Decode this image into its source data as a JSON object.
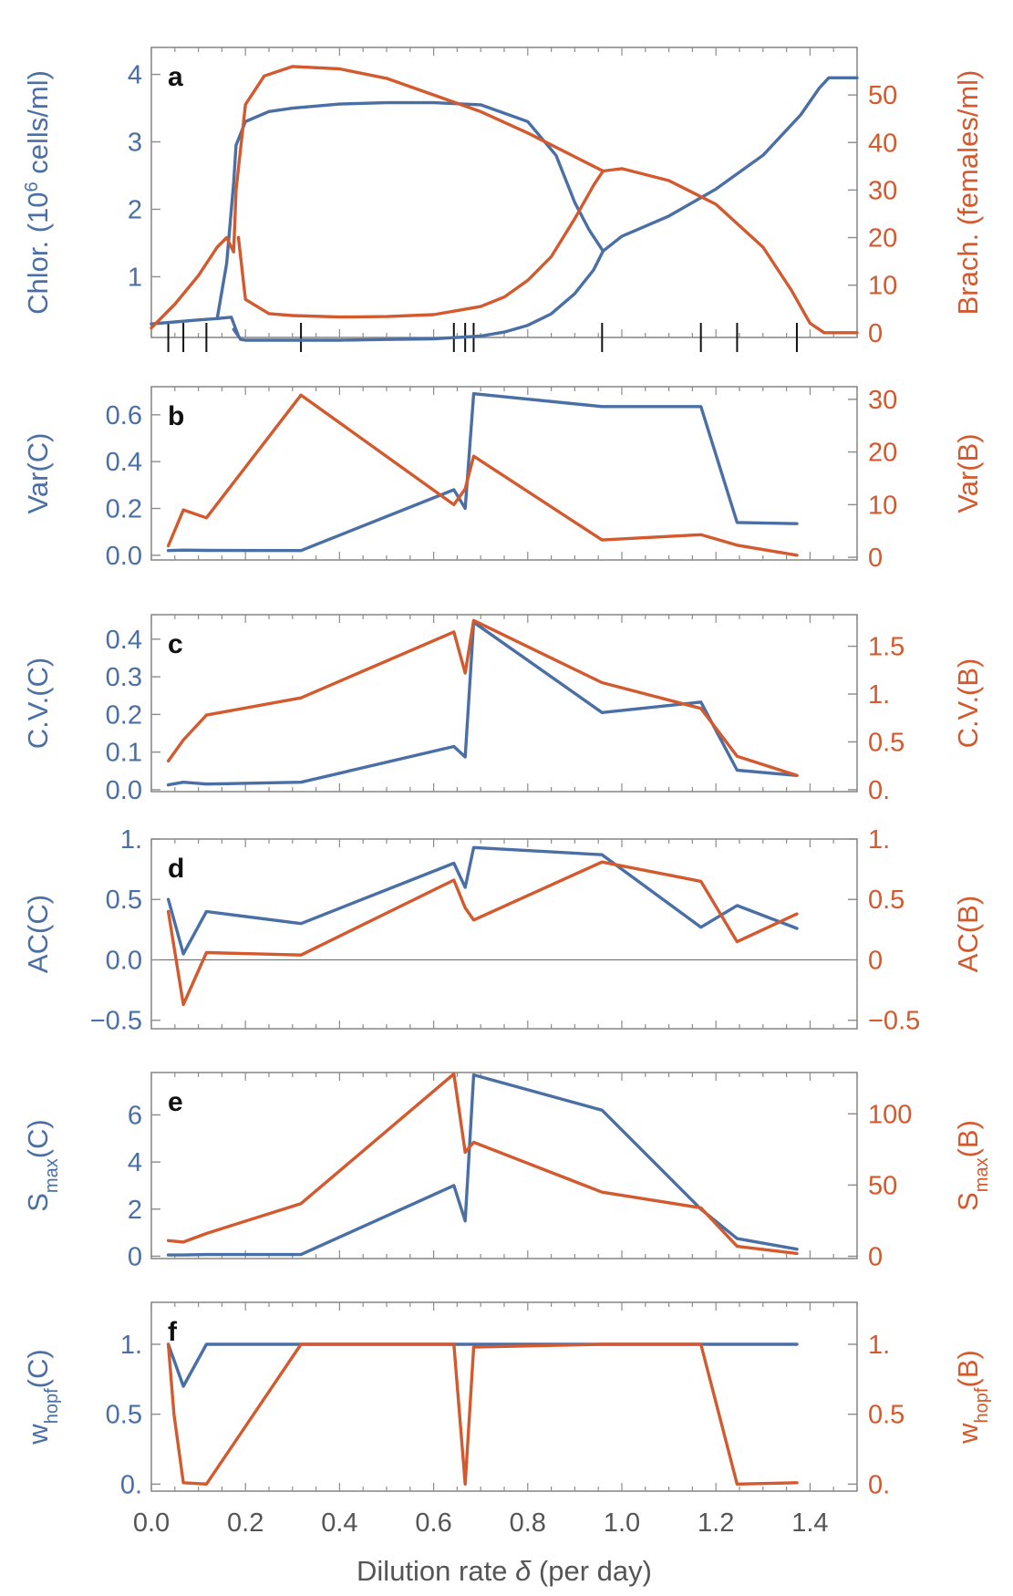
{
  "colors": {
    "blue": "#4A6FA5",
    "orange": "#D25A2E",
    "frame": "#8C8C8C",
    "text": "#555555",
    "zero": "#666666"
  },
  "x_axis": {
    "label_prefix": "Dilution rate ",
    "label_symbol": "δ",
    "label_suffix": " (per day)",
    "ticks": [
      "0.0",
      "0.2",
      "0.4",
      "0.6",
      "0.8",
      "1.0",
      "1.2",
      "1.4"
    ],
    "tick_values": [
      0,
      0.2,
      0.4,
      0.6,
      0.8,
      1.0,
      1.2,
      1.4
    ],
    "range": [
      0,
      1.5
    ]
  },
  "chart_data": [
    {
      "type": "line",
      "panel_letter": "a",
      "left_ylabel": "Chlor. (10",
      "left_ylabel_sup": "6",
      "left_ylabel_tail": " cells/ml)",
      "right_ylabel": "Brach. (females/ml)",
      "left_ylim": [
        0.1,
        4.4
      ],
      "right_ylim": [
        -1,
        60
      ],
      "left_ticks": [
        "1",
        "2",
        "3",
        "4"
      ],
      "left_tick_values": [
        1,
        2,
        3,
        4
      ],
      "right_ticks": [
        "0",
        "10",
        "20",
        "30",
        "40",
        "50"
      ],
      "right_tick_values": [
        0,
        10,
        20,
        30,
        40,
        50
      ],
      "sample_rates": [
        0.036,
        0.068,
        0.117,
        0.318,
        0.643,
        0.667,
        0.685,
        0.958,
        1.168,
        1.245,
        1.372
      ],
      "series": [
        {
          "axis": "left",
          "color": "blue",
          "x": [
            0.0,
            0.05,
            0.1,
            0.14,
            0.17,
            0.185
          ],
          "y": [
            0.3,
            0.33,
            0.36,
            0.38,
            0.4,
            0.12
          ]
        },
        {
          "axis": "left",
          "color": "blue",
          "x": [
            0.14,
            0.16,
            0.175,
            0.18,
            0.2,
            0.25,
            0.3,
            0.4,
            0.5,
            0.6,
            0.7,
            0.8,
            0.86,
            0.9,
            0.93,
            0.96
          ],
          "y": [
            0.38,
            1.2,
            2.4,
            2.95,
            3.3,
            3.45,
            3.5,
            3.56,
            3.58,
            3.58,
            3.55,
            3.3,
            2.8,
            2.1,
            1.7,
            1.38
          ]
        },
        {
          "axis": "left",
          "color": "blue",
          "x": [
            0.175,
            0.19,
            0.2,
            0.3,
            0.4,
            0.5,
            0.6,
            0.7,
            0.75,
            0.8,
            0.85,
            0.9,
            0.94,
            0.96
          ],
          "y": [
            0.22,
            0.07,
            0.06,
            0.06,
            0.06,
            0.07,
            0.08,
            0.12,
            0.18,
            0.28,
            0.45,
            0.75,
            1.1,
            1.38
          ]
        },
        {
          "axis": "left",
          "color": "blue",
          "x": [
            0.96,
            1.0,
            1.1,
            1.2,
            1.3,
            1.38,
            1.42,
            1.44,
            1.5
          ],
          "y": [
            1.38,
            1.6,
            1.9,
            2.3,
            2.8,
            3.4,
            3.8,
            3.95,
            3.95
          ]
        },
        {
          "axis": "right",
          "color": "orange",
          "x": [
            0.0,
            0.05,
            0.1,
            0.14,
            0.16,
            0.175,
            0.18,
            0.2,
            0.24,
            0.3,
            0.4,
            0.5,
            0.6,
            0.7,
            0.8,
            0.88,
            0.94,
            0.96
          ],
          "y": [
            1,
            6,
            12,
            18,
            20,
            17,
            30,
            48,
            54,
            56,
            55.5,
            53.5,
            50,
            46.5,
            42,
            38,
            35,
            34
          ]
        },
        {
          "axis": "right",
          "color": "orange",
          "x": [
            0.185,
            0.2,
            0.25,
            0.3,
            0.4,
            0.5,
            0.6,
            0.7,
            0.75,
            0.8,
            0.85,
            0.9,
            0.94,
            0.96
          ],
          "y": [
            20,
            7,
            4,
            3.6,
            3.3,
            3.4,
            3.8,
            5.5,
            7.5,
            11,
            16,
            24,
            31,
            34
          ]
        },
        {
          "axis": "right",
          "color": "orange",
          "x": [
            0.96,
            1.0,
            1.1,
            1.2,
            1.3,
            1.36,
            1.4,
            1.43,
            1.5
          ],
          "y": [
            34,
            34.5,
            32,
            27,
            18,
            9,
            2,
            0,
            0
          ]
        }
      ]
    },
    {
      "type": "line",
      "panel_letter": "b",
      "left_ylabel": "Var(C)",
      "right_ylabel": "Var(B)",
      "left_ylim": [
        -0.02,
        0.72
      ],
      "right_ylim": [
        -0.5,
        32.4
      ],
      "left_ticks": [
        "0.0",
        "0.2",
        "0.4",
        "0.6"
      ],
      "left_tick_values": [
        0,
        0.2,
        0.4,
        0.6
      ],
      "right_ticks": [
        "0",
        "10",
        "20",
        "30"
      ],
      "right_tick_values": [
        0,
        10,
        20,
        30
      ],
      "series": [
        {
          "name": "C",
          "axis": "left",
          "color": "blue",
          "x": [
            0.036,
            0.068,
            0.117,
            0.318,
            0.643,
            0.667,
            0.685,
            0.958,
            1.168,
            1.245,
            1.372
          ],
          "y": [
            0.02,
            0.022,
            0.021,
            0.02,
            0.28,
            0.2,
            0.69,
            0.635,
            0.635,
            0.14,
            0.135
          ]
        },
        {
          "name": "B",
          "axis": "right",
          "color": "orange",
          "x": [
            0.036,
            0.068,
            0.117,
            0.318,
            0.643,
            0.667,
            0.685,
            0.958,
            1.168,
            1.245,
            1.372
          ],
          "y": [
            2.2,
            9,
            7.5,
            30.8,
            10,
            13,
            19.2,
            3.3,
            4.3,
            2.3,
            0.4
          ]
        }
      ]
    },
    {
      "type": "line",
      "panel_letter": "c",
      "left_ylabel": "C.V.(C)",
      "right_ylabel": "C.V.(B)",
      "left_ylim": [
        -0.005,
        0.465
      ],
      "right_ylim": [
        -0.02,
        1.83
      ],
      "left_ticks": [
        "0.0",
        "0.1",
        "0.2",
        "0.3",
        "0.4"
      ],
      "left_tick_values": [
        0,
        0.1,
        0.2,
        0.3,
        0.4
      ],
      "right_ticks": [
        "0.",
        "0.5",
        "1.",
        "1.5"
      ],
      "right_tick_values": [
        0,
        0.5,
        1.0,
        1.5
      ],
      "series": [
        {
          "name": "C",
          "axis": "left",
          "color": "blue",
          "x": [
            0.036,
            0.068,
            0.117,
            0.318,
            0.643,
            0.667,
            0.685,
            0.958,
            1.168,
            1.245,
            1.372
          ],
          "y": [
            0.013,
            0.02,
            0.015,
            0.02,
            0.115,
            0.087,
            0.445,
            0.205,
            0.233,
            0.052,
            0.038
          ]
        },
        {
          "name": "B",
          "axis": "right",
          "color": "orange",
          "x": [
            0.036,
            0.068,
            0.117,
            0.318,
            0.643,
            0.667,
            0.685,
            0.958,
            1.168,
            1.245,
            1.372
          ],
          "y": [
            0.3,
            0.52,
            0.78,
            0.96,
            1.65,
            1.22,
            1.77,
            1.12,
            0.85,
            0.35,
            0.15
          ]
        }
      ]
    },
    {
      "type": "line",
      "panel_letter": "d",
      "left_ylabel": "AC(C)",
      "right_ylabel": "AC(B)",
      "left_ylim": [
        -0.57,
        1.0
      ],
      "right_ylim": [
        -0.57,
        1.0
      ],
      "left_ticks": [
        "-0.5",
        "0.0",
        "0.5",
        "1."
      ],
      "left_tick_values": [
        -0.5,
        0,
        0.5,
        1.0
      ],
      "right_ticks": [
        "-0.5",
        "0",
        "0.5",
        "1."
      ],
      "right_tick_values": [
        -0.5,
        0,
        0.5,
        1.0
      ],
      "zero_line": 0,
      "series": [
        {
          "name": "C",
          "axis": "left",
          "color": "blue",
          "x": [
            0.036,
            0.068,
            0.117,
            0.318,
            0.643,
            0.667,
            0.685,
            0.958,
            1.168,
            1.245,
            1.372
          ],
          "y": [
            0.5,
            0.05,
            0.4,
            0.3,
            0.8,
            0.6,
            0.93,
            0.87,
            0.27,
            0.45,
            0.26
          ]
        },
        {
          "name": "B",
          "axis": "right",
          "color": "orange",
          "x": [
            0.036,
            0.068,
            0.117,
            0.318,
            0.643,
            0.667,
            0.685,
            0.958,
            1.168,
            1.245,
            1.372
          ],
          "y": [
            0.4,
            -0.37,
            0.06,
            0.04,
            0.66,
            0.43,
            0.33,
            0.81,
            0.65,
            0.15,
            0.38
          ]
        }
      ]
    },
    {
      "type": "line",
      "panel_letter": "e",
      "left_ylabel": "S",
      "left_ylabel_sub": "max",
      "left_ylabel_tail": "(C)",
      "right_ylabel": "S",
      "right_ylabel_sub": "max",
      "right_ylabel_tail": "(B)",
      "left_ylim": [
        -0.1,
        7.8
      ],
      "right_ylim": [
        -1.6,
        129
      ],
      "left_ticks": [
        "0",
        "2",
        "4",
        "6"
      ],
      "left_tick_values": [
        0,
        2,
        4,
        6
      ],
      "right_ticks": [
        "0",
        "50",
        "100"
      ],
      "right_tick_values": [
        0,
        50,
        100
      ],
      "series": [
        {
          "name": "C",
          "axis": "left",
          "color": "blue",
          "x": [
            0.036,
            0.068,
            0.117,
            0.318,
            0.643,
            0.667,
            0.685,
            0.958,
            1.168,
            1.245,
            1.372
          ],
          "y": [
            0.05,
            0.05,
            0.07,
            0.07,
            3.0,
            1.5,
            7.7,
            6.2,
            2.0,
            0.75,
            0.3
          ]
        },
        {
          "name": "B",
          "axis": "right",
          "color": "orange",
          "x": [
            0.036,
            0.068,
            0.117,
            0.318,
            0.643,
            0.667,
            0.685,
            0.958,
            1.168,
            1.245,
            1.372
          ],
          "y": [
            11,
            10,
            16,
            37,
            128,
            73,
            80,
            45,
            34,
            7,
            2
          ]
        }
      ]
    },
    {
      "type": "line",
      "panel_letter": "f",
      "left_ylabel": "w",
      "left_ylabel_sub": "hopf",
      "left_ylabel_tail": "(C)",
      "right_ylabel": "w",
      "right_ylabel_sub": "hopf",
      "right_ylabel_tail": "(B)",
      "left_ylim": [
        -0.05,
        1.3
      ],
      "right_ylim": [
        -0.05,
        1.3
      ],
      "left_ticks": [
        "0.",
        "0.5",
        "1."
      ],
      "left_tick_values": [
        0,
        0.5,
        1.0
      ],
      "right_ticks": [
        "0.",
        "0.5",
        "1."
      ],
      "right_tick_values": [
        0,
        0.5,
        1.0
      ],
      "series": [
        {
          "name": "C",
          "axis": "left",
          "color": "blue",
          "x": [
            0.036,
            0.068,
            0.117,
            0.318,
            0.643,
            0.667,
            0.685,
            0.958,
            1.168,
            1.245,
            1.372
          ],
          "y": [
            1.0,
            0.7,
            1.0,
            1.0,
            1.0,
            1.0,
            1.0,
            1.0,
            1.0,
            1.0,
            1.0
          ]
        },
        {
          "name": "B",
          "axis": "right",
          "color": "orange",
          "x": [
            0.036,
            0.048,
            0.068,
            0.117,
            0.318,
            0.643,
            0.667,
            0.685,
            0.958,
            1.168,
            1.245,
            1.372
          ],
          "y": [
            1.0,
            0.5,
            0.01,
            0.0,
            1.0,
            1.0,
            0.0,
            0.98,
            1.0,
            1.0,
            0.0,
            0.01
          ]
        }
      ]
    }
  ]
}
